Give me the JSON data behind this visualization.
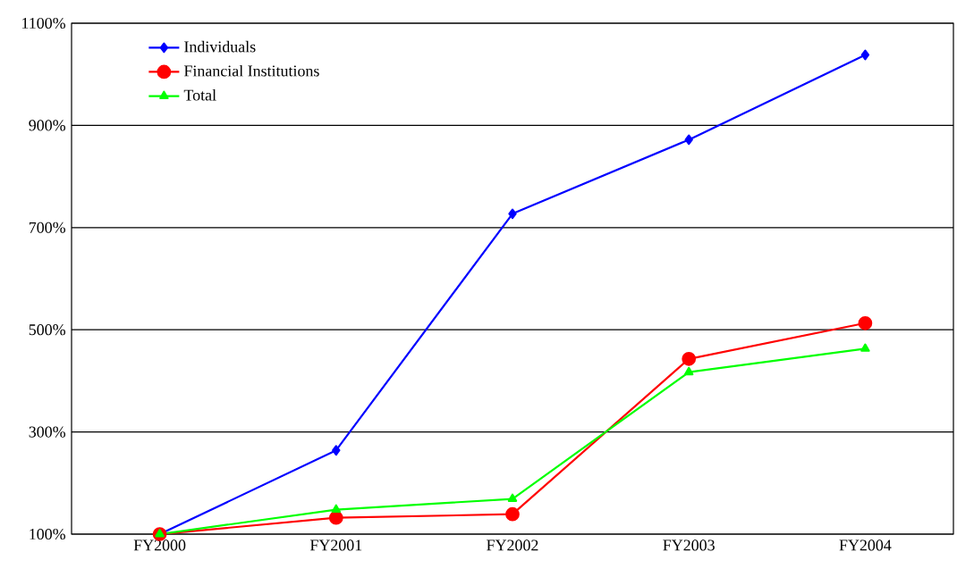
{
  "chart_data": {
    "type": "line",
    "categories": [
      "FY2000",
      "FY2001",
      "FY2002",
      "FY2003",
      "FY2004"
    ],
    "series": [
      {
        "name": "Individuals",
        "color": "#0000ff",
        "marker": "diamond",
        "values": [
          100,
          264,
          727,
          872,
          1038
        ]
      },
      {
        "name": "Financial Institutions",
        "color": "#ff0000",
        "marker": "circle",
        "values": [
          100,
          132,
          139,
          443,
          513
        ]
      },
      {
        "name": "Total",
        "color": "#00ff00",
        "marker": "triangle",
        "values": [
          100,
          148,
          169,
          417,
          463
        ]
      }
    ],
    "ylim": [
      100,
      1100
    ],
    "yticks": [
      {
        "value": 100,
        "label": "100%"
      },
      {
        "value": 300,
        "label": "300%"
      },
      {
        "value": 500,
        "label": "500%"
      },
      {
        "value": 700,
        "label": "700%"
      },
      {
        "value": 900,
        "label": "900%"
      },
      {
        "value": 1100,
        "label": "1100%"
      }
    ],
    "grid": "y",
    "legend": "top left",
    "line_style": "solid"
  }
}
